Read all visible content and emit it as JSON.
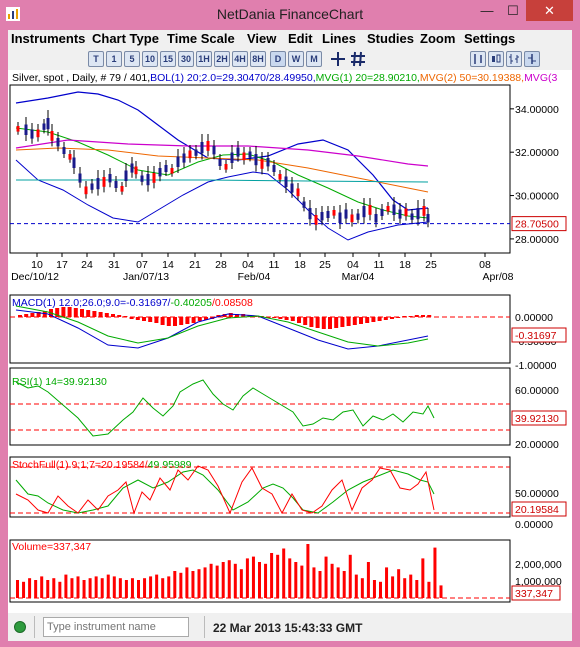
{
  "window": {
    "title": "NetDania FinanceChart",
    "min_glyph": "—",
    "max_glyph": "☐",
    "close_glyph": "✕"
  },
  "menu": [
    "Instruments",
    "Chart Type",
    "Time Scale",
    "View",
    "Edit",
    "Lines",
    "Studies",
    "Zoom",
    "Settings"
  ],
  "toolbar": {
    "timescale_buttons": [
      "T",
      "1",
      "5",
      "10",
      "15",
      "30",
      "1H",
      "2H",
      "4H",
      "8H",
      "D",
      "W",
      "M"
    ],
    "selected": "D",
    "tools": [
      "crosshair-icon",
      "grid-icon",
      "bar-type-icon",
      "candle-type-icon",
      "line-type-icon"
    ]
  },
  "main_panel": {
    "legend": [
      {
        "text": "Silver, spot , Daily, # 79 / 401,",
        "color": "#000000"
      },
      {
        "text": "BOL(1) 20;2.0=29.30470/28.49950,",
        "color": "#0000cc"
      },
      {
        "text": "MVG(1) 20=28.90210,",
        "color": "#00aa00"
      },
      {
        "text": "MVG(2) 50=30.19388,",
        "color": "#ee6600"
      },
      {
        "text": "MVG(3",
        "color": "#cc00cc"
      }
    ],
    "y_ticks": [
      {
        "label": "34.00000",
        "value": 34
      },
      {
        "label": "32.00000",
        "value": 32
      },
      {
        "label": "30.00000",
        "value": 30
      },
      {
        "label": "28.00000",
        "value": 28
      }
    ],
    "price_label": "28.70500",
    "price_value": 28.705,
    "y_range": [
      27.35,
      35.1
    ],
    "x_ticks": [
      "10",
      "17",
      "24",
      "31",
      "07",
      "14",
      "21",
      "28",
      "04",
      "11",
      "18",
      "25",
      "04",
      "11",
      "18",
      "25",
      "08"
    ],
    "x_major": [
      "Dec/10/12",
      "Jan/07/13",
      "Feb/04",
      "Mar/04",
      "Apr/08"
    ]
  },
  "macd_panel": {
    "legend": [
      {
        "text": "MACD(1) 12.0;26.0;9.0=-0.31697/",
        "color": "#0000cc"
      },
      {
        "text": "-0.40205",
        "color": "#00aa00"
      },
      {
        "text": "/0.08508",
        "color": "#ff0000"
      }
    ],
    "y_ticks": [
      "0.00000",
      "-0.50000",
      "-1.00000"
    ],
    "value_label": "-0.31697"
  },
  "rsi_panel": {
    "legend": [
      {
        "text": "RSI(1) 14=39.92130",
        "color": "#00aa00"
      }
    ],
    "y_ticks": [
      "60.00000",
      "20.00000"
    ],
    "value_label": "39.92130"
  },
  "stoch_panel": {
    "legend": [
      {
        "text": "StochFull(1) 9;1;7=20.19584/",
        "color": "#ff0000"
      },
      {
        "text": "49.95989",
        "color": "#00aa00"
      }
    ],
    "y_ticks": [
      "50.00000",
      "0.00000"
    ],
    "value_label": "20.19584"
  },
  "volume_panel": {
    "legend": [
      {
        "text": "Volume=337,347",
        "color": "#ff0000"
      }
    ],
    "y_ticks": [
      "2,000,000",
      "1,000,000"
    ],
    "value_label": "337,347"
  },
  "status": {
    "input_placeholder": "Type instrument name",
    "timestamp": "22 Mar 2013 15:43:33 GMT"
  },
  "colors": {
    "window_border": "#e07fae",
    "bollinger": "#0000cc",
    "mvg20": "#00aa00",
    "mvg50": "#ee6600",
    "mvg3": "#cc00cc",
    "price_line": "#0000cc",
    "volume": "#ff0000"
  }
}
